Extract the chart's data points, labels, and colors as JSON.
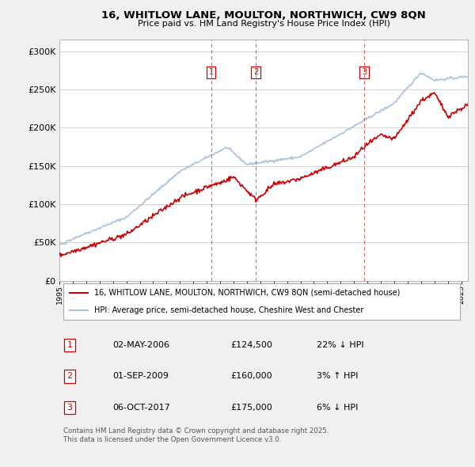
{
  "title": "16, WHITLOW LANE, MOULTON, NORTHWICH, CW9 8QN",
  "subtitle": "Price paid vs. HM Land Registry's House Price Index (HPI)",
  "yticks": [
    0,
    50000,
    100000,
    150000,
    200000,
    250000,
    300000
  ],
  "ytick_labels": [
    "£0",
    "£50K",
    "£100K",
    "£150K",
    "£200K",
    "£250K",
    "£300K"
  ],
  "xlim_start": 1995.0,
  "xlim_end": 2025.5,
  "ylim": [
    0,
    315000
  ],
  "bg_color": "#f0f0f0",
  "plot_bg_color": "#ffffff",
  "hpi_color": "#aac4df",
  "price_color": "#cc0000",
  "vline_color": "#cc0000",
  "transaction_box_color": "#cc0000",
  "sales": [
    {
      "num": 1,
      "date_num": 2006.33,
      "price": 124500
    },
    {
      "num": 2,
      "date_num": 2009.67,
      "price": 160000
    },
    {
      "num": 3,
      "date_num": 2017.75,
      "price": 175000
    }
  ],
  "legend_line1": "16, WHITLOW LANE, MOULTON, NORTHWICH, CW9 8QN (semi-detached house)",
  "legend_line2": "HPI: Average price, semi-detached house, Cheshire West and Chester",
  "footnote": "Contains HM Land Registry data © Crown copyright and database right 2025.\nThis data is licensed under the Open Government Licence v3.0.",
  "table_rows": [
    {
      "num": 1,
      "date": "02-MAY-2006",
      "price": "£124,500",
      "pct": "22% ↓ HPI"
    },
    {
      "num": 2,
      "date": "01-SEP-2009",
      "price": "£160,000",
      "pct": "3% ↑ HPI"
    },
    {
      "num": 3,
      "date": "06-OCT-2017",
      "price": "£175,000",
      "pct": "6% ↓ HPI"
    }
  ]
}
